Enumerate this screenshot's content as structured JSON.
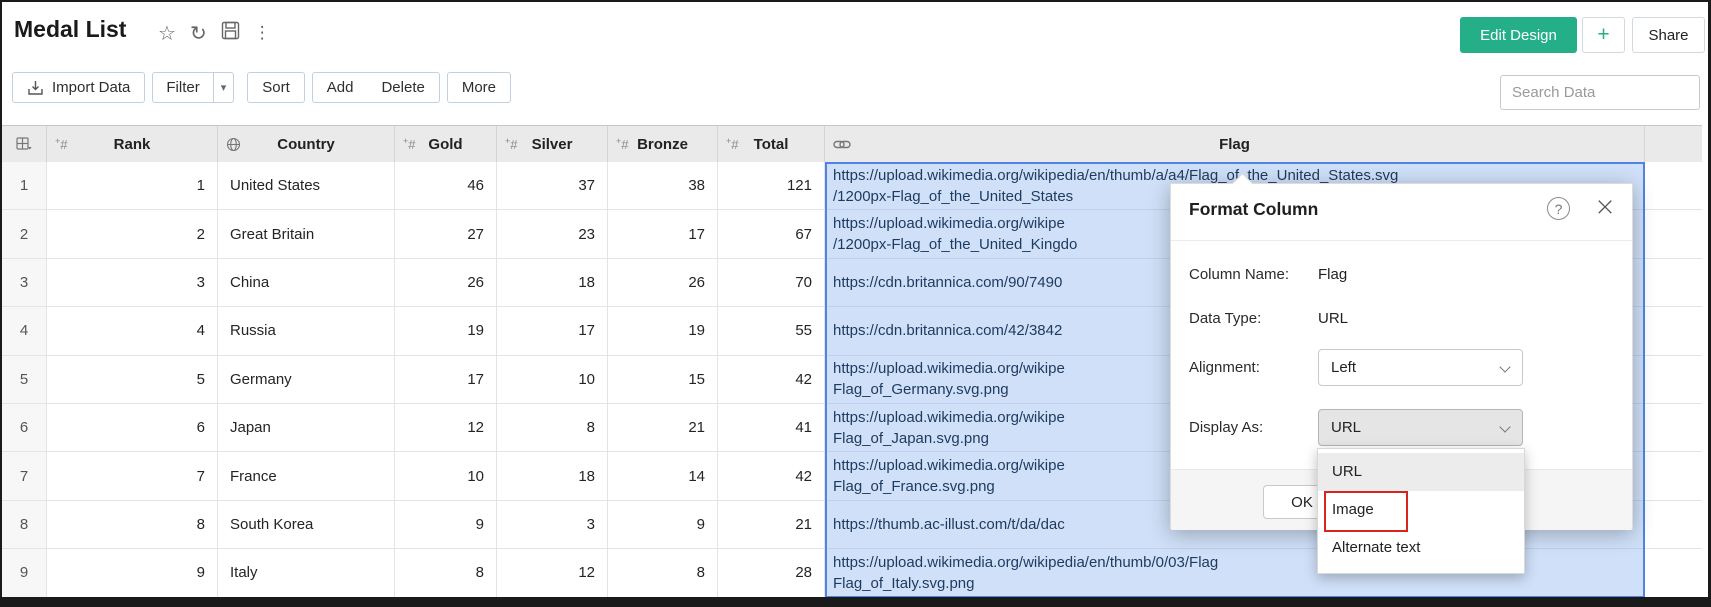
{
  "app": {
    "title": "Medal List"
  },
  "header_actions": {
    "edit_design_label": "Edit Design",
    "plus_label": "+",
    "share_label": "Share",
    "star_icon": "star-icon",
    "refresh_icon": "refresh-icon",
    "save_icon": "save-icon",
    "more_icon": "kebab-menu-icon"
  },
  "toolbar": {
    "import_label": "Import Data",
    "filter_label": "Filter",
    "sort_label": "Sort",
    "add_label": "Add",
    "delete_label": "Delete",
    "more_label": "More"
  },
  "search": {
    "placeholder": "Search Data"
  },
  "table": {
    "columns": [
      {
        "label": "",
        "icon": "table-columns-icon"
      },
      {
        "label": "Rank",
        "icon": "number-icon"
      },
      {
        "label": "Country",
        "icon": "globe-icon"
      },
      {
        "label": "Gold",
        "icon": "number-icon"
      },
      {
        "label": "Silver",
        "icon": "number-icon"
      },
      {
        "label": "Bronze",
        "icon": "number-icon"
      },
      {
        "label": "Total",
        "icon": "number-icon"
      },
      {
        "label": "Flag",
        "icon": "link-icon"
      },
      {
        "label": "",
        "icon": null
      }
    ],
    "rows": [
      {
        "num": "1",
        "rank": "1",
        "country": "United States",
        "gold": "46",
        "silver": "37",
        "bronze": "38",
        "total": "121",
        "flag": [
          "https://upload.wikimedia.org/wikipedia/en/thumb/a/a4/Flag_of_the_United_States.svg",
          "/1200px-Flag_of_the_United_States"
        ]
      },
      {
        "num": "2",
        "rank": "2",
        "country": "Great Britain",
        "gold": "27",
        "silver": "23",
        "bronze": "17",
        "total": "67",
        "flag": [
          "https://upload.wikimedia.org/wikipe",
          "/1200px-Flag_of_the_United_Kingdo"
        ]
      },
      {
        "num": "3",
        "rank": "3",
        "country": "China",
        "gold": "26",
        "silver": "18",
        "bronze": "26",
        "total": "70",
        "flag": [
          "https://cdn.britannica.com/90/7490"
        ]
      },
      {
        "num": "4",
        "rank": "4",
        "country": "Russia",
        "gold": "19",
        "silver": "17",
        "bronze": "19",
        "total": "55",
        "flag": [
          "https://cdn.britannica.com/42/3842"
        ]
      },
      {
        "num": "5",
        "rank": "5",
        "country": "Germany",
        "gold": "17",
        "silver": "10",
        "bronze": "15",
        "total": "42",
        "flag": [
          "https://upload.wikimedia.org/wikipe",
          "Flag_of_Germany.svg.png"
        ]
      },
      {
        "num": "6",
        "rank": "6",
        "country": "Japan",
        "gold": "12",
        "silver": "8",
        "bronze": "21",
        "total": "41",
        "flag": [
          "https://upload.wikimedia.org/wikipe",
          "Flag_of_Japan.svg.png"
        ]
      },
      {
        "num": "7",
        "rank": "7",
        "country": "France",
        "gold": "10",
        "silver": "18",
        "bronze": "14",
        "total": "42",
        "flag": [
          "https://upload.wikimedia.org/wikipe",
          "Flag_of_France.svg.png"
        ]
      },
      {
        "num": "8",
        "rank": "8",
        "country": "South Korea",
        "gold": "9",
        "silver": "3",
        "bronze": "9",
        "total": "21",
        "flag": [
          "https://thumb.ac-illust.com/t/da/dac"
        ]
      },
      {
        "num": "9",
        "rank": "9",
        "country": "Italy",
        "gold": "8",
        "silver": "12",
        "bronze": "8",
        "total": "28",
        "flag": [
          "https://upload.wikimedia.org/wikipedia/en/thumb/0/03/Flag",
          "Flag_of_Italy.svg.png"
        ]
      }
    ]
  },
  "dialog": {
    "title": "Format Column",
    "help_glyph": "?",
    "close_glyph": "×",
    "column_name_label": "Column Name:",
    "column_name_value": "Flag",
    "data_type_label": "Data Type:",
    "data_type_value": "URL",
    "alignment_label": "Alignment:",
    "alignment_value": "Left",
    "display_as_label": "Display As:",
    "display_as_value": "URL",
    "ok_label": "OK",
    "display_options": [
      {
        "label": "URL",
        "highlighted": true,
        "boxed": false
      },
      {
        "label": "Image",
        "highlighted": false,
        "boxed": true
      },
      {
        "label": "Alternate text",
        "highlighted": false,
        "boxed": false
      }
    ]
  },
  "colors": {
    "accent_green": "#25af89",
    "selection_fill": "#cfe0f8",
    "selection_border": "#4f83e4",
    "highlight_red": "#d7271d",
    "header_gray": "#eaeaea"
  }
}
